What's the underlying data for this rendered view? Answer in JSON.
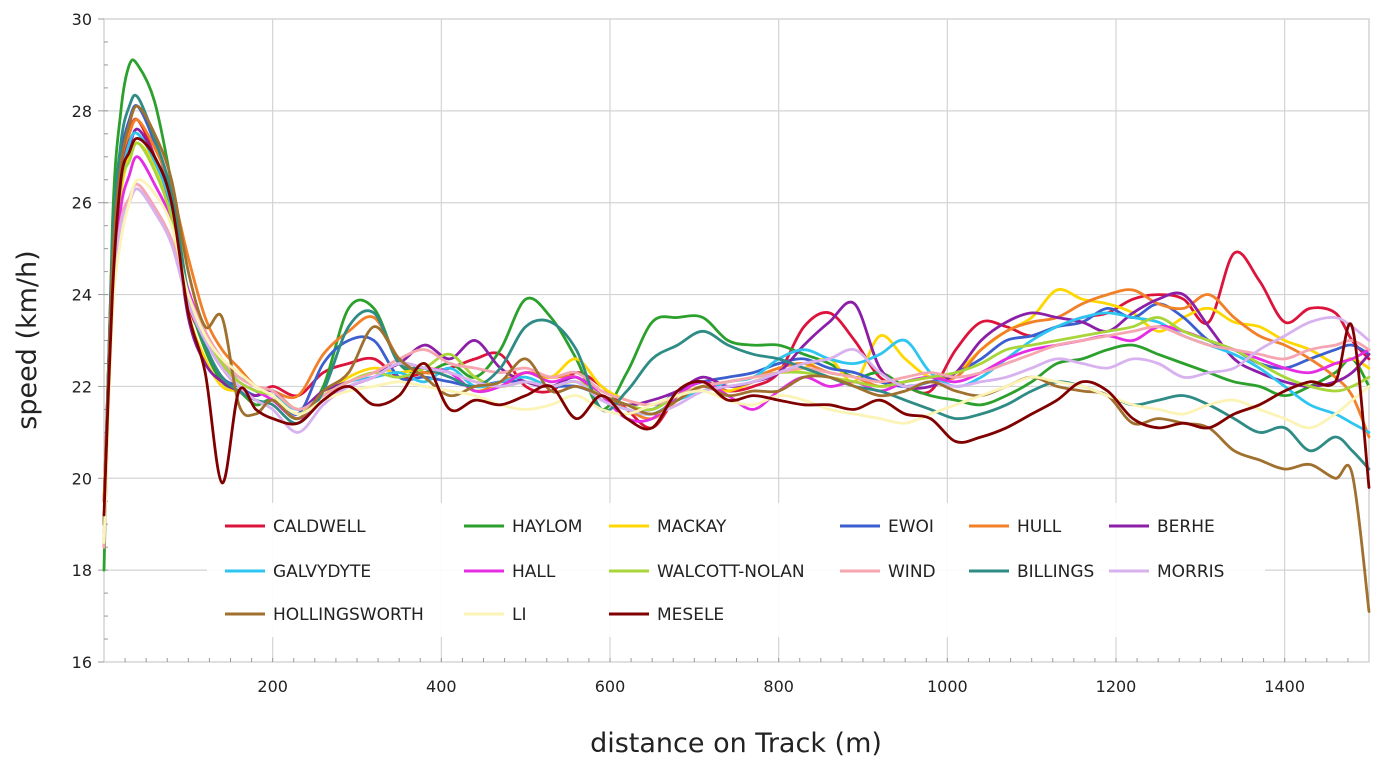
{
  "chart_data": {
    "type": "line",
    "title": "",
    "xlabel": "distance on Track (m)",
    "ylabel": "speed (km/h)",
    "xlim": [
      0,
      1500
    ],
    "ylim": [
      16,
      30
    ],
    "x_ticks": [
      200,
      400,
      600,
      800,
      1000,
      1200,
      1400
    ],
    "y_ticks": [
      16,
      18,
      20,
      22,
      24,
      26,
      28,
      30
    ],
    "grid": true,
    "legend_position": "bottom-center, inside plot, 6 columns",
    "x": [
      0,
      10,
      20,
      30,
      40,
      60,
      80,
      100,
      120,
      140,
      160,
      180,
      200,
      230,
      260,
      290,
      320,
      350,
      380,
      410,
      440,
      470,
      500,
      530,
      560,
      590,
      620,
      650,
      680,
      710,
      740,
      770,
      800,
      830,
      860,
      890,
      920,
      950,
      980,
      1010,
      1040,
      1070,
      1100,
      1130,
      1160,
      1190,
      1220,
      1250,
      1280,
      1310,
      1340,
      1370,
      1400,
      1430,
      1460,
      1480,
      1500
    ],
    "series": [
      {
        "name": "CALDWELL",
        "color": "#dc143c",
        "values": [
          19.5,
          24.5,
          26.5,
          27.5,
          27.8,
          27.0,
          25.8,
          23.8,
          23.0,
          22.4,
          22.0,
          21.8,
          22.0,
          21.8,
          22.3,
          22.5,
          22.6,
          22.2,
          22.3,
          22.4,
          22.6,
          22.7,
          22.0,
          21.9,
          22.3,
          22.0,
          21.5,
          21.1,
          21.8,
          22.1,
          21.9,
          22.0,
          22.3,
          23.3,
          23.6,
          23.0,
          22.2,
          22.0,
          21.9,
          22.8,
          23.4,
          23.3,
          23.1,
          23.3,
          23.5,
          23.6,
          23.9,
          24.0,
          23.9,
          23.4,
          24.9,
          24.3,
          23.4,
          23.7,
          23.6,
          23.0,
          22.6
        ]
      },
      {
        "name": "HAYLOM",
        "color": "#2ca02c",
        "values": [
          18.0,
          25.5,
          28.0,
          29.0,
          29.0,
          28.2,
          26.4,
          24.0,
          22.8,
          22.1,
          21.9,
          21.6,
          21.7,
          21.3,
          22.0,
          23.7,
          23.7,
          22.5,
          22.3,
          22.5,
          22.2,
          22.8,
          23.9,
          23.5,
          22.6,
          21.5,
          22.3,
          23.4,
          23.5,
          23.5,
          23.0,
          22.9,
          22.9,
          22.7,
          22.5,
          22.2,
          22.3,
          22.0,
          21.8,
          21.7,
          21.6,
          21.8,
          22.1,
          22.5,
          22.6,
          22.8,
          22.9,
          22.7,
          22.5,
          22.3,
          22.1,
          22.0,
          21.8,
          22.0,
          22.3,
          22.6,
          22.0
        ]
      },
      {
        "name": "MACKAY",
        "color": "#ffd700",
        "values": [
          18.5,
          24.0,
          26.2,
          27.0,
          27.3,
          26.8,
          25.6,
          23.6,
          22.6,
          22.0,
          21.9,
          21.8,
          21.9,
          21.5,
          21.8,
          22.2,
          22.4,
          22.3,
          22.4,
          22.3,
          22.1,
          22.0,
          22.3,
          22.2,
          22.6,
          22.0,
          21.7,
          21.6,
          21.8,
          22.0,
          21.9,
          22.1,
          22.3,
          22.4,
          22.6,
          22.1,
          23.1,
          22.6,
          22.2,
          22.3,
          22.8,
          23.2,
          23.5,
          24.1,
          23.9,
          23.8,
          23.6,
          23.2,
          23.5,
          23.7,
          23.4,
          23.3,
          23.0,
          22.8,
          22.5,
          22.6,
          22.4
        ]
      },
      {
        "name": "EWOI",
        "color": "#3b5fce",
        "values": [
          19.0,
          25.0,
          27.0,
          27.8,
          28.1,
          27.3,
          26.1,
          24.0,
          22.9,
          22.2,
          22.0,
          21.8,
          21.9,
          21.4,
          22.5,
          23.0,
          23.0,
          22.2,
          22.2,
          22.1,
          22.0,
          22.1,
          22.1,
          22.0,
          22.0,
          21.8,
          21.6,
          21.5,
          21.9,
          22.1,
          22.2,
          22.3,
          22.5,
          22.6,
          22.4,
          22.3,
          22.1,
          22.0,
          22.1,
          22.3,
          22.6,
          23.0,
          23.1,
          23.3,
          23.4,
          23.7,
          23.5,
          23.8,
          23.5,
          23.0,
          22.8,
          22.5,
          22.4,
          22.6,
          22.8,
          22.9,
          22.7
        ]
      },
      {
        "name": "HULL",
        "color": "#f28028",
        "values": [
          19.5,
          24.5,
          26.8,
          27.5,
          27.8,
          27.2,
          26.3,
          24.8,
          23.5,
          22.8,
          22.4,
          22.0,
          21.9,
          21.8,
          22.7,
          23.2,
          23.5,
          22.6,
          22.3,
          22.3,
          21.9,
          22.1,
          22.3,
          22.2,
          22.2,
          21.8,
          21.5,
          21.3,
          21.7,
          22.0,
          22.1,
          22.2,
          22.4,
          22.5,
          22.3,
          22.2,
          22.0,
          22.1,
          22.2,
          22.2,
          22.8,
          23.2,
          23.4,
          23.5,
          23.8,
          24.0,
          24.1,
          23.8,
          23.7,
          24.0,
          23.5,
          23.1,
          22.9,
          22.6,
          22.2,
          21.8,
          20.9
        ]
      },
      {
        "name": "BERHE",
        "color": "#8b1fa8",
        "values": [
          19.0,
          24.8,
          26.5,
          27.2,
          27.6,
          27.0,
          26.0,
          23.5,
          22.5,
          22.1,
          21.9,
          21.8,
          21.9,
          21.5,
          21.9,
          22.1,
          22.3,
          22.5,
          22.9,
          22.6,
          23.0,
          22.4,
          22.1,
          22.0,
          22.2,
          21.8,
          21.6,
          21.7,
          21.9,
          22.2,
          22.0,
          22.1,
          22.3,
          22.9,
          23.4,
          23.8,
          22.4,
          22.0,
          22.0,
          22.3,
          23.0,
          23.4,
          23.6,
          23.5,
          23.4,
          23.2,
          23.6,
          23.9,
          24.0,
          23.3,
          22.6,
          22.3,
          22.1,
          22.0,
          22.1,
          22.3,
          22.7
        ]
      },
      {
        "name": "GALVYDYTE",
        "color": "#2ec5f0",
        "values": [
          19.0,
          24.5,
          26.4,
          27.3,
          27.5,
          26.9,
          25.9,
          24.0,
          23.1,
          22.5,
          22.2,
          22.0,
          21.8,
          21.5,
          21.8,
          22.1,
          22.2,
          22.3,
          22.1,
          22.4,
          22.0,
          22.1,
          22.2,
          22.0,
          22.1,
          21.7,
          21.5,
          21.4,
          21.7,
          21.9,
          22.1,
          22.2,
          22.6,
          22.8,
          22.6,
          22.5,
          22.7,
          23.0,
          22.3,
          22.0,
          22.2,
          22.6,
          23.0,
          23.3,
          23.5,
          23.6,
          23.5,
          23.4,
          23.1,
          22.9,
          22.7,
          22.4,
          22.0,
          21.6,
          21.4,
          21.2,
          21.0
        ]
      },
      {
        "name": "HALL",
        "color": "#e52de3",
        "values": [
          18.5,
          24.0,
          25.9,
          26.6,
          27.0,
          26.4,
          25.6,
          24.1,
          23.2,
          22.5,
          22.1,
          21.9,
          21.7,
          21.3,
          21.7,
          22.0,
          22.2,
          22.5,
          22.4,
          22.3,
          21.9,
          22.0,
          22.3,
          22.1,
          22.2,
          21.8,
          21.3,
          21.3,
          21.8,
          22.1,
          21.8,
          21.5,
          21.9,
          22.2,
          22.0,
          22.1,
          21.9,
          22.1,
          22.2,
          22.1,
          22.3,
          22.6,
          22.8,
          22.9,
          23.0,
          23.1,
          23.0,
          23.3,
          23.2,
          23.0,
          22.8,
          22.6,
          22.4,
          22.3,
          22.5,
          22.6,
          22.8
        ]
      },
      {
        "name": "WALCOTT-NOLAN",
        "color": "#a8d53a",
        "values": [
          19.0,
          24.3,
          26.4,
          26.9,
          27.3,
          26.7,
          25.7,
          24.0,
          23.1,
          22.5,
          22.1,
          21.9,
          21.8,
          21.4,
          21.8,
          22.1,
          22.3,
          22.2,
          22.4,
          22.7,
          22.2,
          22.0,
          22.1,
          22.0,
          22.1,
          21.8,
          21.6,
          21.5,
          21.8,
          22.0,
          22.1,
          22.2,
          22.3,
          22.3,
          22.2,
          22.1,
          22.0,
          22.1,
          22.2,
          22.3,
          22.5,
          22.8,
          22.9,
          23.0,
          23.1,
          23.2,
          23.3,
          23.5,
          23.2,
          23.0,
          22.8,
          22.5,
          22.2,
          22.0,
          21.9,
          22.0,
          22.2
        ]
      },
      {
        "name": "WIND",
        "color": "#f5a6b0",
        "values": [
          18.5,
          23.8,
          25.6,
          26.1,
          26.4,
          25.9,
          25.2,
          24.0,
          23.2,
          22.6,
          22.2,
          22.0,
          21.9,
          21.5,
          21.8,
          22.1,
          22.3,
          22.6,
          22.8,
          22.5,
          22.4,
          22.3,
          22.4,
          22.2,
          22.3,
          21.9,
          21.7,
          21.6,
          21.8,
          22.0,
          22.1,
          22.2,
          22.3,
          22.4,
          22.3,
          22.2,
          22.1,
          22.2,
          22.3,
          22.2,
          22.3,
          22.5,
          22.7,
          22.9,
          23.0,
          23.1,
          23.2,
          23.3,
          23.1,
          22.9,
          22.8,
          22.7,
          22.6,
          22.8,
          22.9,
          23.0,
          22.8
        ]
      },
      {
        "name": "BILLINGS",
        "color": "#2e8b85",
        "values": [
          19.0,
          25.0,
          27.3,
          28.1,
          28.3,
          27.4,
          26.2,
          24.0,
          22.9,
          22.2,
          21.9,
          21.7,
          21.6,
          21.2,
          21.9,
          23.3,
          23.6,
          22.5,
          22.4,
          22.2,
          22.0,
          22.4,
          23.3,
          23.4,
          22.8,
          21.5,
          21.9,
          22.6,
          22.9,
          23.2,
          22.9,
          22.7,
          22.6,
          22.4,
          22.2,
          22.0,
          21.9,
          21.7,
          21.5,
          21.3,
          21.4,
          21.6,
          21.9,
          22.1,
          22.0,
          21.8,
          21.6,
          21.7,
          21.8,
          21.6,
          21.3,
          21.0,
          21.1,
          20.6,
          20.9,
          20.6,
          20.2
        ]
      },
      {
        "name": "MORRIS",
        "color": "#d7b2ef",
        "values": [
          18.8,
          23.9,
          25.5,
          26.0,
          26.3,
          25.8,
          25.1,
          23.8,
          23.0,
          22.4,
          22.0,
          21.7,
          21.5,
          21.0,
          21.6,
          22.0,
          22.2,
          22.5,
          22.4,
          22.3,
          22.1,
          22.0,
          22.1,
          22.0,
          22.1,
          21.7,
          21.5,
          21.4,
          21.6,
          21.9,
          22.0,
          22.1,
          22.3,
          22.5,
          22.6,
          22.8,
          22.3,
          22.0,
          22.1,
          22.0,
          22.1,
          22.2,
          22.4,
          22.6,
          22.5,
          22.4,
          22.6,
          22.5,
          22.2,
          22.3,
          22.4,
          22.8,
          23.1,
          23.4,
          23.5,
          23.3,
          23.0
        ]
      },
      {
        "name": "HOLLINGSWORTH",
        "color": "#a0702e",
        "values": [
          19.0,
          24.6,
          26.8,
          27.7,
          28.1,
          27.5,
          26.5,
          24.5,
          23.3,
          23.5,
          21.6,
          21.4,
          21.7,
          21.3,
          21.9,
          22.3,
          23.3,
          22.6,
          22.2,
          21.8,
          22.0,
          22.1,
          22.6,
          21.9,
          22.0,
          21.8,
          21.6,
          21.4,
          21.7,
          22.0,
          21.8,
          21.9,
          21.9,
          22.2,
          22.2,
          22.0,
          21.8,
          21.9,
          22.1,
          21.9,
          21.8,
          22.0,
          22.2,
          22.0,
          21.9,
          21.8,
          21.2,
          21.3,
          21.2,
          21.1,
          20.6,
          20.4,
          20.2,
          20.3,
          20.0,
          20.1,
          17.1
        ]
      },
      {
        "name": "LI",
        "color": "#fbf4b6",
        "values": [
          18.6,
          23.5,
          25.2,
          26.0,
          26.5,
          26.2,
          25.5,
          24.0,
          23.1,
          22.6,
          22.3,
          22.0,
          21.8,
          21.4,
          21.7,
          21.9,
          22.0,
          22.1,
          22.0,
          21.9,
          21.8,
          21.6,
          21.5,
          21.6,
          21.8,
          21.5,
          21.4,
          21.6,
          21.8,
          21.9,
          21.7,
          21.6,
          21.8,
          21.7,
          21.5,
          21.4,
          21.3,
          21.2,
          21.4,
          21.6,
          21.8,
          22.0,
          22.2,
          22.1,
          22.0,
          21.8,
          21.6,
          21.5,
          21.4,
          21.6,
          21.7,
          21.5,
          21.3,
          21.1,
          21.4,
          21.7,
          22.0
        ]
      },
      {
        "name": "MESELE",
        "color": "#800000",
        "values": [
          19.2,
          24.0,
          26.5,
          27.1,
          27.4,
          27.0,
          26.0,
          23.6,
          22.3,
          19.9,
          21.9,
          21.5,
          21.3,
          21.2,
          21.7,
          22.0,
          21.6,
          21.8,
          22.5,
          21.5,
          21.7,
          21.6,
          21.8,
          22.0,
          21.3,
          21.8,
          21.3,
          21.1,
          21.9,
          22.1,
          21.7,
          21.8,
          21.7,
          21.6,
          21.6,
          21.5,
          21.7,
          21.4,
          21.3,
          20.8,
          20.9,
          21.1,
          21.4,
          21.7,
          22.1,
          21.9,
          21.3,
          21.1,
          21.2,
          21.1,
          21.4,
          21.6,
          21.9,
          22.1,
          22.1,
          23.3,
          19.8
        ]
      }
    ]
  }
}
